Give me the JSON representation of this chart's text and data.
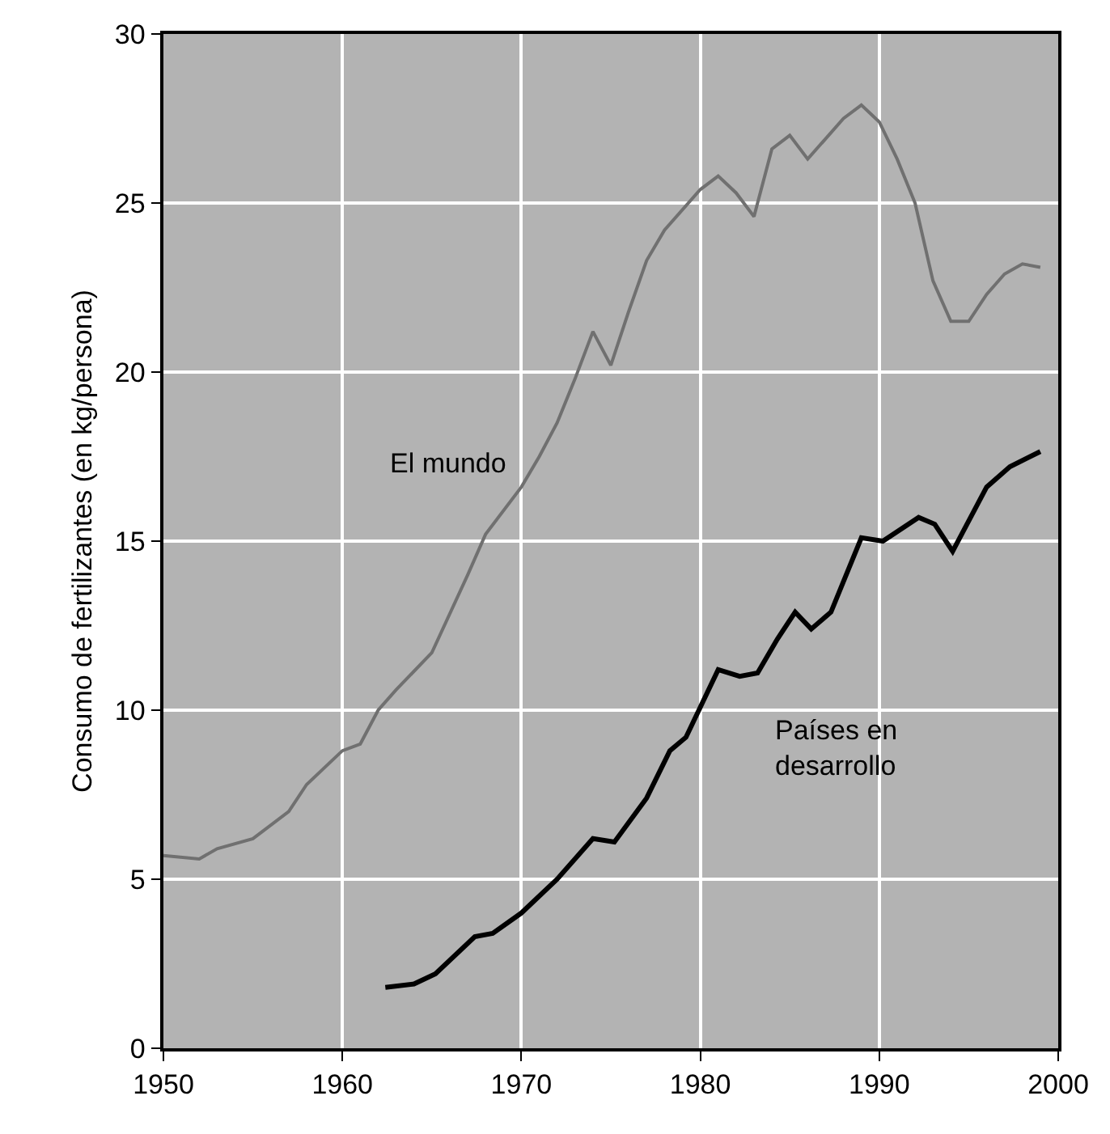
{
  "chart_data": {
    "type": "line",
    "ylabel": "Consumo de fertilizantes (en kg/persona)",
    "xlim": [
      1950,
      2000
    ],
    "xticks": [
      1950,
      1960,
      1970,
      1980,
      1990,
      2000
    ],
    "ylim": [
      0,
      30
    ],
    "yticks": [
      0,
      5,
      10,
      15,
      20,
      25,
      30
    ],
    "grid": true,
    "marker": "none",
    "line_style": "solid",
    "series": [
      {
        "color": "#707070",
        "x": [
          1950,
          1952,
          1953,
          1955,
          1957,
          1958,
          1960,
          1961,
          1962,
          1963,
          1965,
          1967,
          1968,
          1970,
          1971,
          1972,
          1973,
          1974,
          1975,
          1976,
          1977,
          1978,
          1980,
          1981,
          1982,
          1983,
          1984,
          1985,
          1986,
          1987,
          1988,
          1989,
          1990,
          1991,
          1992,
          1993,
          1994,
          1995,
          1996,
          1997,
          1998,
          1999
        ],
        "values": [
          5.7,
          5.6,
          5.9,
          6.2,
          7.0,
          7.8,
          8.8,
          9.0,
          10.0,
          10.6,
          11.7,
          14.0,
          15.2,
          16.6,
          17.5,
          18.5,
          19.8,
          21.2,
          20.2,
          21.8,
          23.3,
          24.2,
          25.4,
          25.8,
          25.3,
          24.6,
          26.6,
          27.0,
          26.3,
          26.9,
          27.5,
          27.9,
          27.4,
          26.3,
          25.0,
          22.7,
          21.5,
          21.5,
          22.3,
          22.9,
          23.2,
          23.1
        ]
      },
      {
        "color": "#000000",
        "x": [
          1962.4,
          1964,
          1965.2,
          1967.4,
          1968.4,
          1970,
          1972,
          1974,
          1975.2,
          1977,
          1978.3,
          1979.2,
          1981,
          1982.2,
          1983.2,
          1984.3,
          1985.3,
          1986.2,
          1987.3,
          1989,
          1990.2,
          1992.2,
          1993.1,
          1994.1,
          1996,
          1997.3,
          1999
        ],
        "values": [
          1.8,
          1.9,
          2.2,
          3.3,
          3.4,
          4.0,
          5.0,
          6.2,
          6.1,
          7.4,
          8.8,
          9.2,
          11.2,
          11.0,
          11.1,
          12.1,
          12.9,
          12.4,
          12.9,
          15.1,
          15.0,
          15.7,
          15.5,
          14.7,
          16.6,
          17.2,
          17.65
        ]
      }
    ],
    "annotations": [
      "El mundo",
      "Países en\ndesarrollo"
    ]
  }
}
